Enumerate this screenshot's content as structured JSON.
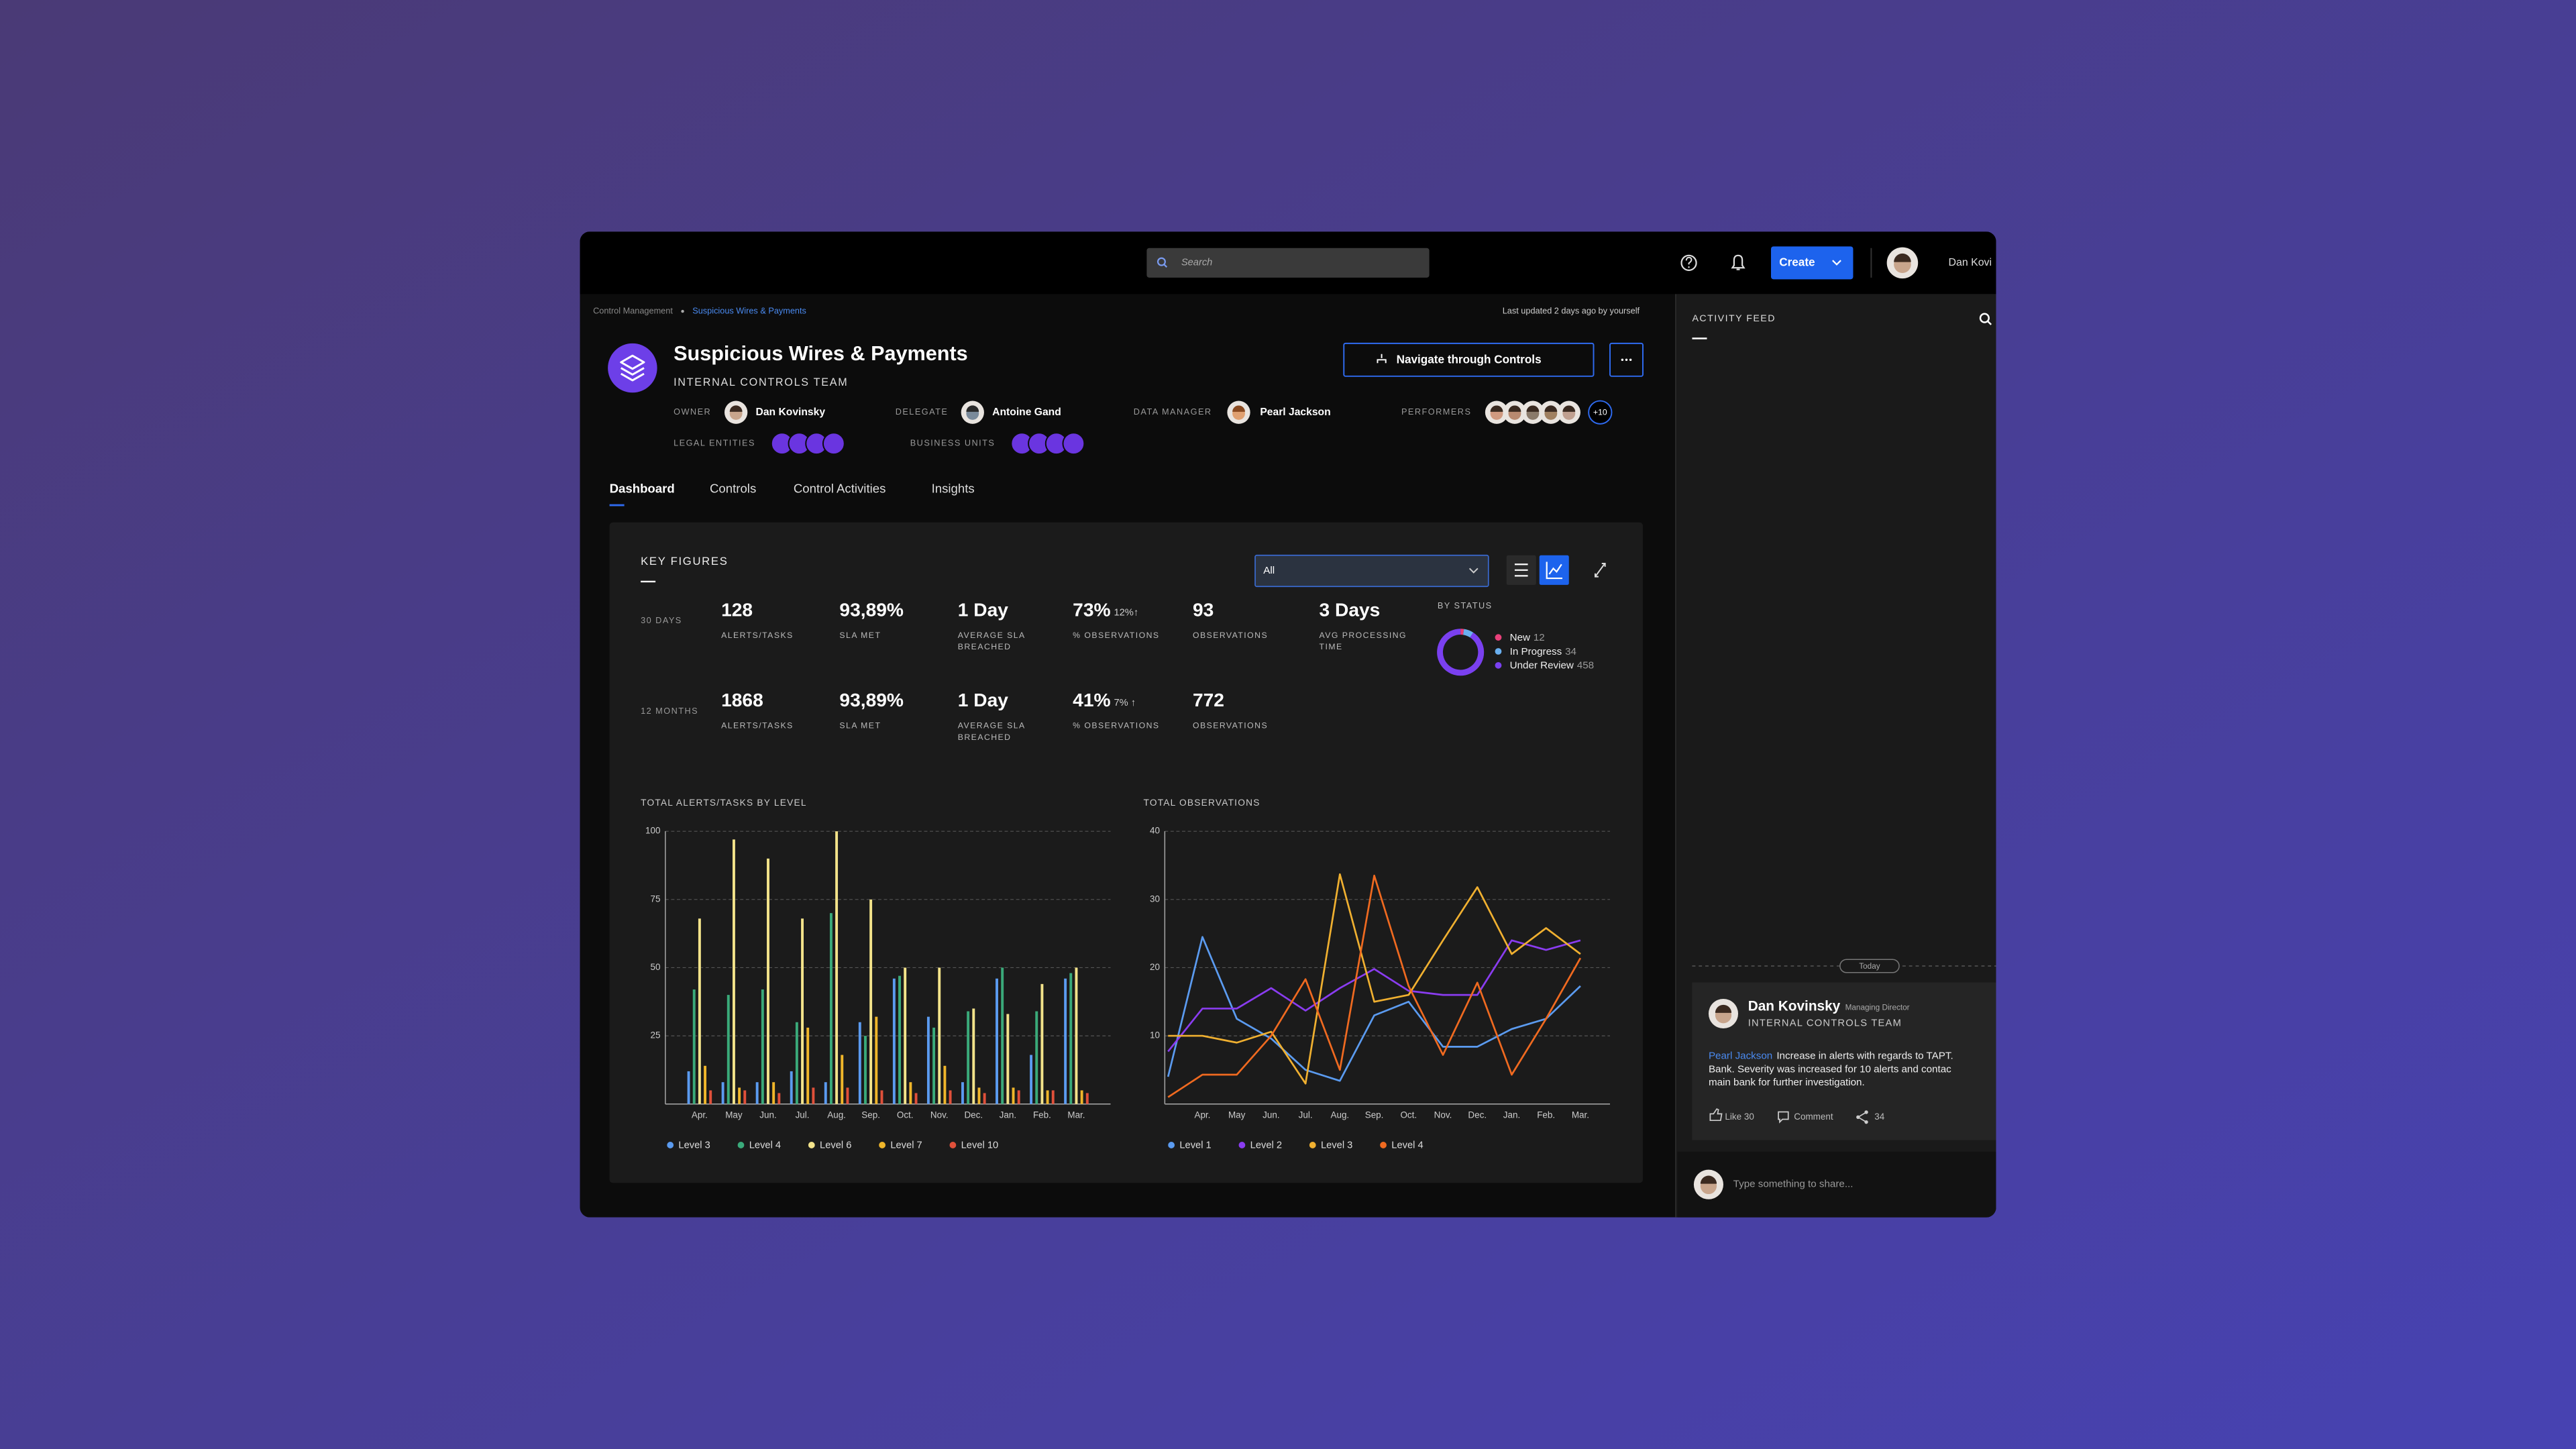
{
  "header": {
    "search_placeholder": "Search",
    "create_button": "Create",
    "user_name": "Dan Kovi"
  },
  "breadcrumb": [
    "Control Management",
    "Suspicious Wires & Payments"
  ],
  "last_updated": "Last updated 2 days ago by yourself",
  "control": {
    "title": "Suspicious Wires & Payments",
    "team": "INTERNAL CONTROLS TEAM",
    "navigate_button": "Navigate through Controls",
    "people": [
      {
        "role": "OWNER",
        "name": "Dan Kovinsky"
      },
      {
        "role": "DELEGATE",
        "name": "Antoine Gand"
      },
      {
        "role": "DATA MANAGER",
        "name": "Pearl Jackson"
      }
    ],
    "performers": {
      "label": "PERFORMERS",
      "more": "+10"
    },
    "legal_entities": "LEGAL ENTITIES",
    "business_units": "BUSINESS UNITS"
  },
  "tabs": [
    "Dashboard",
    "Controls",
    "Control Activities",
    "Insights"
  ],
  "key_figures": {
    "title": "KEY FIGURES",
    "filter": "All",
    "rows": [
      {
        "period": "30 DAYS",
        "figures": [
          {
            "value": "128",
            "label": [
              "ALERTS/TASKS"
            ]
          },
          {
            "value": "93,89%",
            "label": [
              "SLA MET"
            ]
          },
          {
            "value": "1 Day",
            "label": [
              "AVERAGE SLA",
              "BREACHED"
            ]
          },
          {
            "value": "73%",
            "delta": "12%↑",
            "label": [
              "% OBSERVATIONS"
            ]
          },
          {
            "value": "93",
            "label": [
              "OBSERVATIONS"
            ]
          },
          {
            "value": "3 Days",
            "label": [
              "AVG PROCESSING",
              "TIME"
            ]
          }
        ]
      },
      {
        "period": "12 MONTHS",
        "figures": [
          {
            "value": "1868",
            "label": [
              "ALERTS/TASKS"
            ]
          },
          {
            "value": "93,89%",
            "label": [
              "SLA MET"
            ]
          },
          {
            "value": "1 Day",
            "label": [
              "AVERAGE SLA",
              "BREACHED"
            ]
          },
          {
            "value": "41%",
            "delta": "7% ↑",
            "label": [
              "% OBSERVATIONS"
            ]
          },
          {
            "value": "772",
            "label": [
              "OBSERVATIONS"
            ]
          }
        ]
      }
    ]
  },
  "activity_feed": {
    "title": "ACTIVITY FEED",
    "day": "Today",
    "post": {
      "author": "Dan Kovinsky",
      "role": "Managing Director",
      "team": "INTERNAL CONTROLS TEAM",
      "mention": "Pearl Jackson",
      "text_lines": [
        "Increase in alerts with regards to TAPT.",
        "Bank. Severity was increased for 10 alerts and contac",
        "main bank for further investigation."
      ],
      "like": "Like 30",
      "comment": "Comment",
      "shares": "34"
    },
    "input_placeholder": "Type something to share..."
  },
  "chart_data": [
    {
      "type": "bar",
      "title": "TOTAL ALERTS/TASKS BY LEVEL",
      "categories": [
        "Apr.",
        "May",
        "Jun.",
        "Jul.",
        "Aug.",
        "Sep.",
        "Oct.",
        "Nov.",
        "Dec.",
        "Jan.",
        "Feb.",
        "Mar."
      ],
      "series": [
        {
          "name": "Level 3",
          "color": "#5b9bf0",
          "values": [
            12,
            8,
            8,
            12,
            8,
            30,
            46,
            32,
            8,
            46,
            18,
            46
          ]
        },
        {
          "name": "Level 4",
          "color": "#3aaa7a",
          "values": [
            42,
            40,
            42,
            30,
            70,
            25,
            47,
            28,
            34,
            50,
            34,
            48
          ]
        },
        {
          "name": "Level 6",
          "color": "#f3e38a",
          "values": [
            68,
            97,
            90,
            68,
            100,
            75,
            50,
            50,
            35,
            33,
            44,
            50
          ]
        },
        {
          "name": "Level 7",
          "color": "#f0b62a",
          "values": [
            14,
            6,
            8,
            28,
            18,
            32,
            8,
            14,
            6,
            6,
            5,
            5
          ]
        },
        {
          "name": "Level 10",
          "color": "#e0503a",
          "values": [
            5,
            5,
            4,
            6,
            6,
            5,
            4,
            5,
            4,
            5,
            5,
            4
          ]
        }
      ],
      "ylim": [
        0,
        100
      ],
      "yticks": [
        25,
        50,
        75,
        100
      ],
      "grid": true
    },
    {
      "type": "line",
      "title": "TOTAL OBSERVATIONS",
      "categories": [
        null,
        "Apr.",
        "May",
        "Jun.",
        "Jul.",
        "Aug.",
        "Sep.",
        "Oct.",
        "Nov.",
        "Dec.",
        "Jan.",
        "Feb.",
        "Mar."
      ],
      "series": [
        {
          "name": "Level 1",
          "color": "#5b9bf0",
          "values": [
            4,
            24.5,
            12.5,
            9.6,
            5,
            3.4,
            13,
            15,
            8.4,
            8.4,
            11,
            12.5,
            17.3
          ]
        },
        {
          "name": "Level 2",
          "color": "#8a3cf0",
          "values": [
            7.7,
            14,
            14,
            17,
            13.7,
            17,
            19.8,
            16.6,
            16,
            16,
            24,
            22.6,
            24
          ]
        },
        {
          "name": "Level 3",
          "color": "#f0b030",
          "values": [
            10,
            10,
            9,
            10.6,
            3,
            33.7,
            15,
            16,
            24,
            31.8,
            22,
            25.8,
            22
          ]
        },
        {
          "name": "Level 4",
          "color": "#f06a20",
          "values": [
            1,
            4.3,
            4.3,
            10,
            18.3,
            5,
            33.5,
            17.3,
            7.2,
            17.8,
            4.3,
            12.5,
            21.4
          ]
        }
      ],
      "ylim": [
        0,
        40
      ],
      "yticks": [
        10,
        20,
        30,
        40
      ],
      "grid": true
    },
    {
      "type": "donut",
      "title": "BY STATUS",
      "categories": [
        "New",
        "In Progress",
        "Under Review"
      ],
      "values": [
        12,
        34,
        458
      ],
      "colors": [
        "#e8407a",
        "#6ab0f0",
        "#7a40f0"
      ]
    }
  ]
}
